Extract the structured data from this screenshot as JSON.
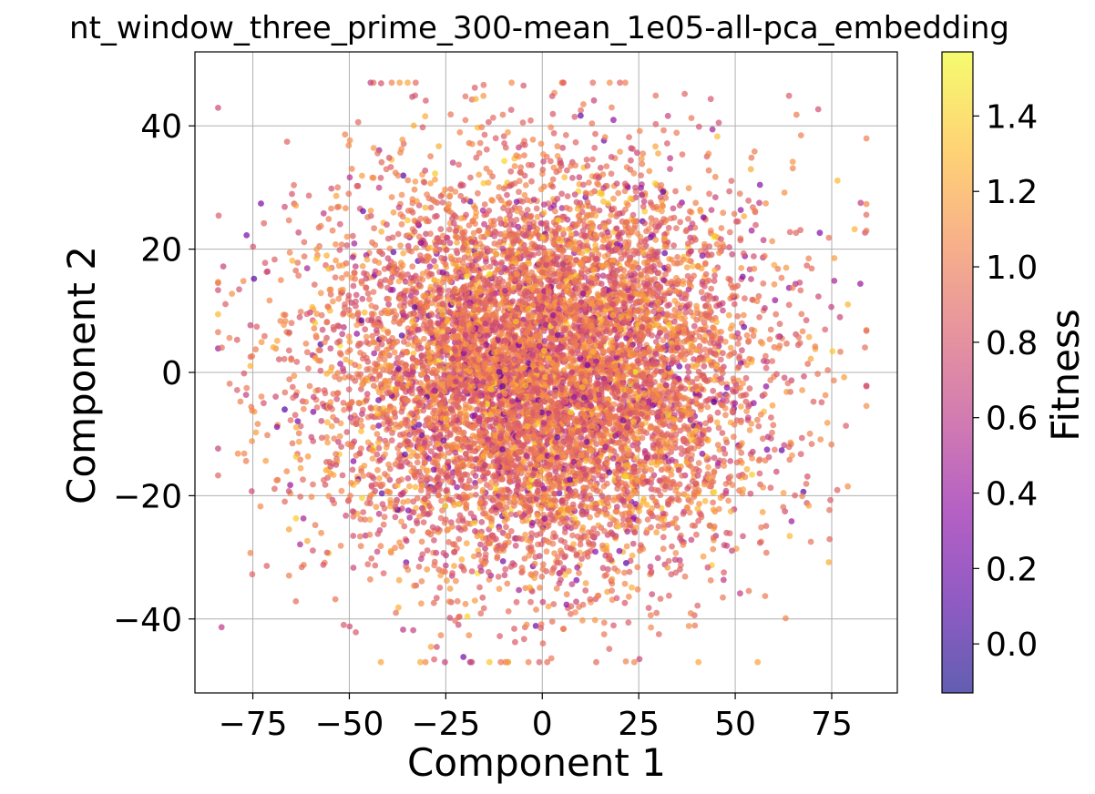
{
  "chart_data": {
    "type": "scatter",
    "title": "nt_window_three_prime_300-mean_1e05-all-pca_embedding",
    "xlabel": "Component 1",
    "ylabel": "Component 2",
    "xlim": [
      -90,
      92
    ],
    "ylim": [
      -52,
      52
    ],
    "x_ticks": [
      -75,
      -50,
      -25,
      0,
      25,
      50,
      75
    ],
    "x_tick_labels": [
      "−75",
      "−50",
      "−25",
      "0",
      "25",
      "50",
      "75"
    ],
    "y_ticks": [
      -40,
      -20,
      0,
      20,
      40
    ],
    "y_tick_labels": [
      "−40",
      "−20",
      "0",
      "20",
      "40"
    ],
    "grid": true,
    "colorbar": {
      "label": "Fitness",
      "colormap": "plasma",
      "range": [
        -0.13,
        1.57
      ],
      "ticks": [
        0.0,
        0.2,
        0.4,
        0.6,
        0.8,
        1.0,
        1.2,
        1.4
      ],
      "tick_labels": [
        "0.0",
        "0.2",
        "0.4",
        "0.6",
        "0.8",
        "1.0",
        "1.2",
        "1.4"
      ]
    },
    "points_description": {
      "count_rendered": 9000,
      "center": [
        0,
        0
      ],
      "spread_x": 27,
      "spread_y": 16,
      "fitness_mean": 0.95,
      "fitness_spread": 0.18
    },
    "marker_alpha": 0.7
  }
}
